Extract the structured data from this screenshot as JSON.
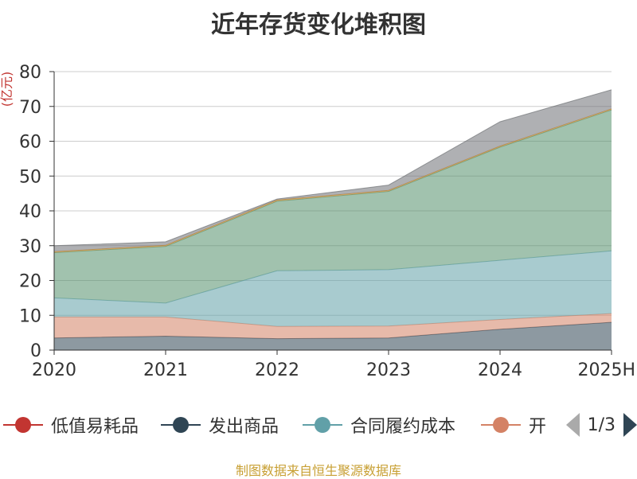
{
  "chart_data": {
    "type": "area",
    "stacked": true,
    "title": "近年存货变化堆积图",
    "ylabel": "(亿元)",
    "ylim": [
      0,
      80
    ],
    "yticks": [
      0,
      10,
      20,
      30,
      40,
      50,
      60,
      70,
      80
    ],
    "categories": [
      "2020",
      "2021",
      "2022",
      "2023",
      "2024",
      "2025H"
    ],
    "grid": true,
    "legend_position": "bottom",
    "series": [
      {
        "name": "发出商品",
        "color": "#2f4554",
        "values": [
          3.5,
          4.0,
          3.3,
          3.5,
          6.0,
          8.0
        ]
      },
      {
        "name": "开",
        "color": "#d48265",
        "values": [
          6.0,
          5.5,
          3.5,
          3.4,
          2.8,
          2.5
        ]
      },
      {
        "name": "合同履约成本",
        "color": "#61a0a8",
        "values": [
          5.5,
          4.0,
          16.0,
          16.2,
          17.0,
          18.0
        ]
      },
      {
        "name": "",
        "color": "#548f6c",
        "values": [
          13.0,
          16.3,
          20.0,
          22.5,
          32.5,
          40.5
        ]
      },
      {
        "name": "",
        "color": "#ca8622",
        "values": [
          0.3,
          0.3,
          0.3,
          0.3,
          0.3,
          0.3
        ]
      },
      {
        "name": "",
        "color": "#6e7074",
        "values": [
          1.7,
          1.0,
          0.3,
          1.5,
          7.0,
          5.5
        ]
      }
    ]
  },
  "legend": {
    "items": [
      {
        "label": "低值易耗品",
        "color": "#c23531"
      },
      {
        "label": "发出商品",
        "color": "#2f4554"
      },
      {
        "label": "合同履约成本",
        "color": "#61a0a8"
      },
      {
        "label": "开",
        "color": "#d48265"
      }
    ],
    "page": "1/3"
  },
  "footer": {
    "source": "制图数据来自恒生聚源数据库"
  }
}
